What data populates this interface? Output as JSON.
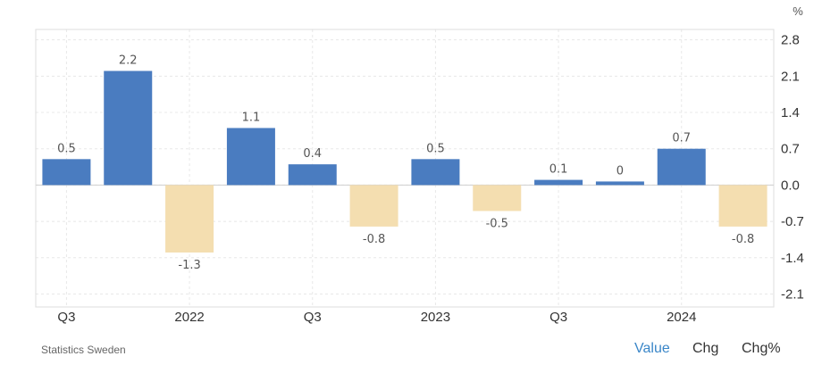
{
  "chart_data": {
    "type": "bar",
    "unit": "%",
    "values": [
      0.5,
      2.2,
      -1.3,
      1.1,
      0.4,
      -0.8,
      0.5,
      -0.5,
      0.1,
      0,
      0.7,
      -0.8
    ],
    "data_labels": [
      "0.5",
      "2.2",
      "-1.3",
      "1.1",
      "0.4",
      "-0.8",
      "0.5",
      "-0.5",
      "0.1",
      "0",
      "0.7",
      "-0.8"
    ],
    "x_tick_labels": [
      {
        "index": 0,
        "label": "Q3"
      },
      {
        "index": 2,
        "label": "2022"
      },
      {
        "index": 4,
        "label": "Q3"
      },
      {
        "index": 6,
        "label": "2023"
      },
      {
        "index": 8,
        "label": "Q3"
      },
      {
        "index": 10,
        "label": "2024"
      }
    ],
    "y_ticks": [
      2.8,
      2.1,
      1.4,
      0.7,
      0.0,
      -0.7,
      -1.4,
      -2.1
    ],
    "y_tick_labels": [
      "2.8",
      "2.1",
      "1.4",
      "0.7",
      "0.0",
      "-0.7",
      "-1.4",
      "-2.1"
    ],
    "ylim": [
      -2.35,
      3.0
    ],
    "grid": true,
    "axis_position": "right",
    "colors": {
      "positive": "#4a7cc0",
      "negative": "#f4deb0"
    }
  },
  "source": "Statistics Sweden",
  "view_tabs": [
    {
      "label": "Value",
      "active": true
    },
    {
      "label": "Chg",
      "active": false
    },
    {
      "label": "Chg%",
      "active": false
    }
  ]
}
